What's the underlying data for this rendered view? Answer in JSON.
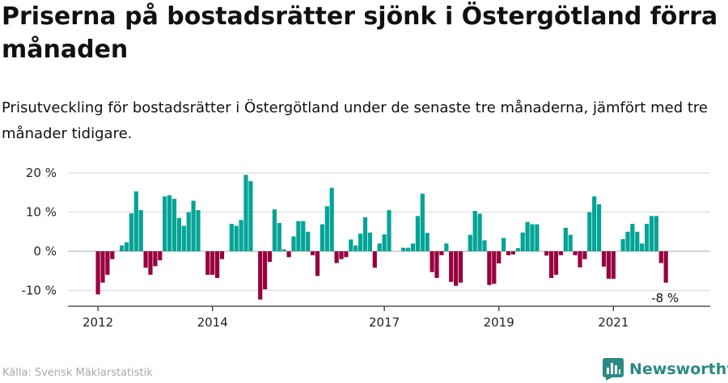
{
  "title": "Priserna på bostadsrätter sjönk i Östergötland förra månaden",
  "subtitle": "Prisutveckling för bostadsrätter i Östergötland under de senaste tre månaderna, jämfört med tre månader tidigare.",
  "source": "Källa: Svensk Mäklarstatistik",
  "brand": "Newsworthy",
  "colors": {
    "positive": "#02a496",
    "negative": "#98003f",
    "brand": "#2a8a83",
    "grid": "#dddddd"
  },
  "chart_data": {
    "type": "bar",
    "title": "Priserna på bostadsrätter sjönk i Östergötland förra månaden",
    "ylabel": "",
    "xlabel": "",
    "y_tick_values": [
      -10,
      0,
      10,
      20
    ],
    "y_tick_labels": [
      "-10 %",
      "0 %",
      "10 %",
      "20 %"
    ],
    "ylim": [
      -14,
      21
    ],
    "start": "2012-01",
    "x_tick_labels": [
      {
        "label": "2012",
        "index": 0
      },
      {
        "label": "2014",
        "index": 24
      },
      {
        "label": "2017",
        "index": 60
      },
      {
        "label": "2019",
        "index": 84
      },
      {
        "label": "2021",
        "index": 108
      }
    ],
    "last_value_label": "-8 %",
    "values": [
      -11,
      -8,
      -6,
      -2,
      0,
      1.5,
      2.3,
      9.7,
      15.3,
      10.5,
      -4.2,
      -6,
      -3.8,
      -2.3,
      14,
      14.3,
      13.4,
      8.5,
      6.5,
      10,
      12.9,
      10.5,
      0,
      -6,
      -6,
      -6.8,
      -2,
      0,
      7,
      6.5,
      8,
      19.5,
      17.9,
      0,
      -12.3,
      -9.7,
      -2.7,
      10.7,
      7.2,
      0.5,
      -1.5,
      3.8,
      7.7,
      7.7,
      5,
      -1,
      -6.3,
      6.9,
      11.5,
      16.2,
      -3,
      -2,
      -1.5,
      3,
      1.5,
      4.5,
      8.7,
      4.8,
      -4.2,
      2,
      4.3,
      10.5,
      0,
      0,
      0.9,
      0.9,
      2,
      9,
      14.7,
      4.7,
      -5.3,
      -6.8,
      -1,
      2,
      -7.8,
      -8.8,
      -8,
      0,
      4.2,
      10.3,
      9.6,
      2.8,
      -8.6,
      -8.3,
      -3.1,
      3.4,
      -1,
      -0.8,
      0.8,
      4.8,
      7.5,
      6.9,
      6.9,
      0,
      -1.1,
      -6.8,
      -6,
      -1,
      6,
      4.2,
      -1,
      -4.1,
      -2,
      10,
      14,
      12,
      -3.9,
      -7,
      -7,
      0,
      3.1,
      5,
      7,
      5,
      2,
      7,
      9,
      9,
      -3,
      -8
    ]
  }
}
